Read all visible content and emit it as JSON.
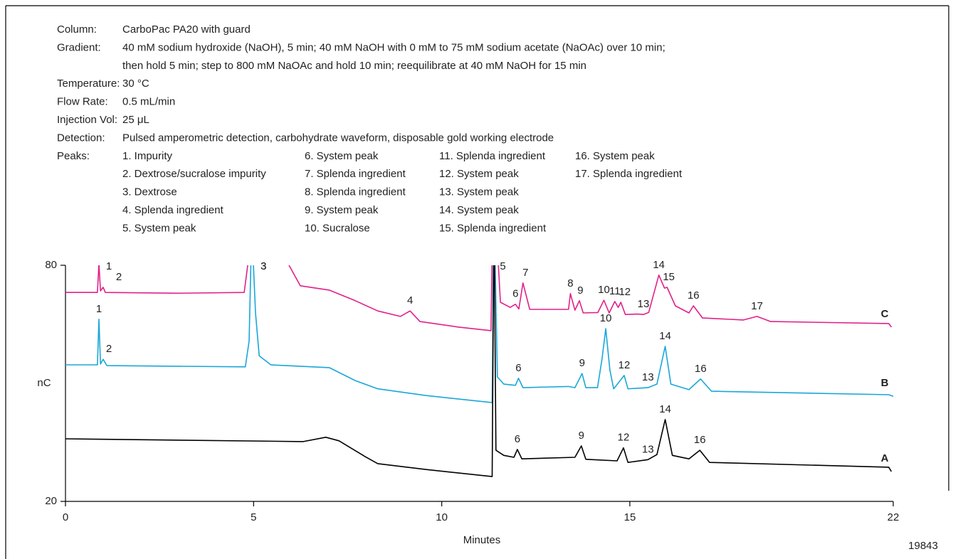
{
  "conditions": [
    {
      "label": "Column:",
      "lines": [
        "CarboPac PA20 with guard"
      ]
    },
    {
      "label": "Gradient:",
      "lines": [
        "40 mM sodium hydroxide (NaOH), 5 min; 40 mM NaOH with 0 mM to 75 mM sodium acetate (NaOAc) over 10 min;",
        "then hold 5 min; step to 800 mM NaOAc and hold 10 min; reequilibrate at 40 mM NaOH for 15 min"
      ]
    },
    {
      "label": "Temperature:",
      "lines": [
        "30 °C"
      ]
    },
    {
      "label": "Flow Rate:",
      "lines": [
        "0.5 mL/min"
      ]
    },
    {
      "label": "Injection Vol:",
      "lines": [
        "25 μL"
      ]
    },
    {
      "label": "Detection:",
      "lines": [
        "Pulsed amperometric detection, carbohydrate waveform, disposable gold working electrode"
      ]
    }
  ],
  "peaks_label": "Peaks:",
  "peak_list": [
    "1. Impurity",
    "2. Dextrose/sucralose impurity",
    "3. Dextrose",
    "4. Splenda ingredient",
    "5. System peak",
    "6. System peak",
    "7. Splenda ingredient",
    "8. Splenda ingredient",
    "9. System peak",
    "10. Sucralose",
    "11. Splenda ingredient",
    "12. System peak",
    "13. System peak",
    "14. System peak",
    "15. Splenda ingredient",
    "16. System peak",
    "17. Splenda ingredient"
  ],
  "figure_id": "19843",
  "chart_data": {
    "type": "line",
    "xlabel": "Minutes",
    "ylabel": "nC",
    "xlim": [
      0,
      22
    ],
    "xticks": [
      0,
      5,
      10,
      15,
      22
    ],
    "ylim": [
      20,
      80
    ],
    "yticks": [
      20,
      80
    ],
    "series": [
      {
        "name": "C",
        "color": "#e0218a",
        "x": [
          0,
          0.85,
          0.89,
          0.93,
          1.0,
          1.06,
          3.0,
          4.75,
          4.85,
          5.0,
          5.93,
          6.24,
          7.01,
          7.7,
          8.3,
          8.9,
          9.16,
          9.42,
          10.45,
          11.31,
          11.36,
          11.42,
          11.56,
          11.82,
          11.96,
          12.05,
          12.16,
          12.34,
          13.37,
          13.42,
          13.54,
          13.66,
          13.76,
          14.15,
          14.31,
          14.45,
          14.6,
          14.69,
          14.76,
          14.88,
          15.2,
          15.36,
          15.5,
          15.77,
          15.92,
          15.99,
          16.21,
          16.57,
          16.69,
          16.93,
          18.02,
          18.38,
          18.74,
          21.88,
          21.95
        ],
        "values": [
          73.1,
          73.1,
          80.4,
          73.5,
          74.4,
          73.1,
          72.9,
          73.1,
          80.5,
          95,
          80.2,
          74.8,
          73.7,
          71.0,
          68.4,
          67.0,
          68.4,
          65.7,
          64.3,
          63.4,
          95,
          95,
          70.6,
          69.3,
          70.1,
          68.9,
          75.5,
          68.8,
          68.8,
          72.8,
          68.6,
          71.0,
          67.9,
          68.0,
          71.1,
          67.9,
          70.8,
          69.3,
          70.6,
          67.5,
          67.6,
          67.5,
          68.0,
          77.5,
          74.2,
          74.4,
          69.7,
          67.9,
          69.7,
          66.6,
          66.1,
          67.0,
          65.7,
          65.2,
          64.3
        ],
        "peaks": [
          {
            "label": "1",
            "x": 0.89,
            "y": 80.4
          },
          {
            "label": "2",
            "x": 1.0,
            "y": 74.4
          },
          {
            "label": "3",
            "x": 5.0,
            "y": 95
          },
          {
            "label": "4",
            "x": 9.16,
            "y": 68.4
          },
          {
            "label": "5",
            "x": 11.36,
            "y": 95
          },
          {
            "label": "6",
            "x": 11.96,
            "y": 70.1
          },
          {
            "label": "7",
            "x": 12.16,
            "y": 75.5
          },
          {
            "label": "8",
            "x": 13.42,
            "y": 72.8
          },
          {
            "label": "9",
            "x": 13.66,
            "y": 71.0
          },
          {
            "label": "10",
            "x": 14.31,
            "y": 71.1
          },
          {
            "label": "11",
            "x": 14.6,
            "y": 70.8
          },
          {
            "label": "12",
            "x": 14.76,
            "y": 70.6
          },
          {
            "label": "13",
            "x": 15.36,
            "y": 67.5
          },
          {
            "label": "14",
            "x": 15.77,
            "y": 77.5
          },
          {
            "label": "15",
            "x": 15.99,
            "y": 74.4
          },
          {
            "label": "16",
            "x": 16.69,
            "y": 69.7
          },
          {
            "label": "17",
            "x": 18.38,
            "y": 67.0
          }
        ]
      },
      {
        "name": "B",
        "color": "#1aa7d8",
        "x": [
          0,
          0.85,
          0.89,
          0.93,
          1.0,
          1.1,
          4.78,
          4.88,
          4.95,
          5.05,
          5.15,
          5.46,
          7.01,
          7.7,
          8.3,
          9.59,
          11.34,
          11.39,
          11.48,
          11.65,
          11.96,
          12.04,
          12.16,
          13.37,
          13.54,
          13.73,
          13.83,
          14.14,
          14.26,
          14.36,
          14.47,
          14.57,
          14.85,
          14.95,
          15.48,
          15.72,
          15.94,
          16.09,
          16.57,
          16.88,
          17.17,
          21.88,
          22
        ],
        "values": [
          54.7,
          54.7,
          66.3,
          54.9,
          56.1,
          54.5,
          54.2,
          60.7,
          90,
          67.9,
          57.0,
          54.7,
          54.0,
          50.7,
          48.6,
          46.9,
          45.1,
          95,
          51.6,
          49.8,
          49.5,
          51.3,
          48.9,
          49.2,
          48.9,
          52.5,
          48.9,
          48.9,
          56.1,
          63.9,
          53.4,
          48.6,
          52.0,
          48.6,
          48.9,
          49.8,
          59.4,
          49.8,
          48.4,
          51.1,
          48.0,
          47.1,
          46.7
        ],
        "peaks": [
          {
            "label": "1",
            "x": 0.89,
            "y": 66.3
          },
          {
            "label": "2",
            "x": 1.0,
            "y": 56.1
          },
          {
            "label": "3",
            "x": 5.0,
            "y": 90
          },
          {
            "label": "6",
            "x": 12.04,
            "y": 51.3
          },
          {
            "label": "9",
            "x": 13.73,
            "y": 52.5
          },
          {
            "label": "10",
            "x": 14.36,
            "y": 63.9
          },
          {
            "label": "12",
            "x": 14.85,
            "y": 52.0
          },
          {
            "label": "13",
            "x": 15.48,
            "y": 48.9
          },
          {
            "label": "14",
            "x": 15.94,
            "y": 59.4
          },
          {
            "label": "16",
            "x": 16.88,
            "y": 51.1
          }
        ]
      },
      {
        "name": "A",
        "color": "#000000",
        "x": [
          0,
          6.32,
          6.92,
          7.27,
          7.96,
          8.3,
          9.59,
          11.34,
          11.39,
          11.44,
          11.65,
          11.92,
          12.01,
          12.13,
          13.54,
          13.71,
          13.83,
          14.66,
          14.83,
          14.95,
          15.48,
          15.72,
          15.94,
          16.13,
          16.57,
          16.86,
          17.12,
          21.88,
          21.95
        ],
        "values": [
          35.9,
          35.2,
          36.3,
          35.4,
          31.4,
          29.6,
          28.1,
          26.3,
          95,
          33.0,
          31.7,
          31.2,
          33.2,
          30.8,
          31.2,
          34.1,
          30.7,
          30.3,
          33.6,
          29.9,
          30.6,
          31.9,
          40.8,
          31.7,
          30.8,
          33.0,
          29.9,
          28.7,
          27.6
        ],
        "peaks": [
          {
            "label": "6",
            "x": 12.01,
            "y": 33.2
          },
          {
            "label": "9",
            "x": 13.71,
            "y": 34.1
          },
          {
            "label": "12",
            "x": 14.83,
            "y": 33.6
          },
          {
            "label": "13",
            "x": 15.48,
            "y": 30.6
          },
          {
            "label": "14",
            "x": 15.94,
            "y": 40.8
          },
          {
            "label": "16",
            "x": 16.86,
            "y": 33.0
          }
        ]
      }
    ]
  }
}
